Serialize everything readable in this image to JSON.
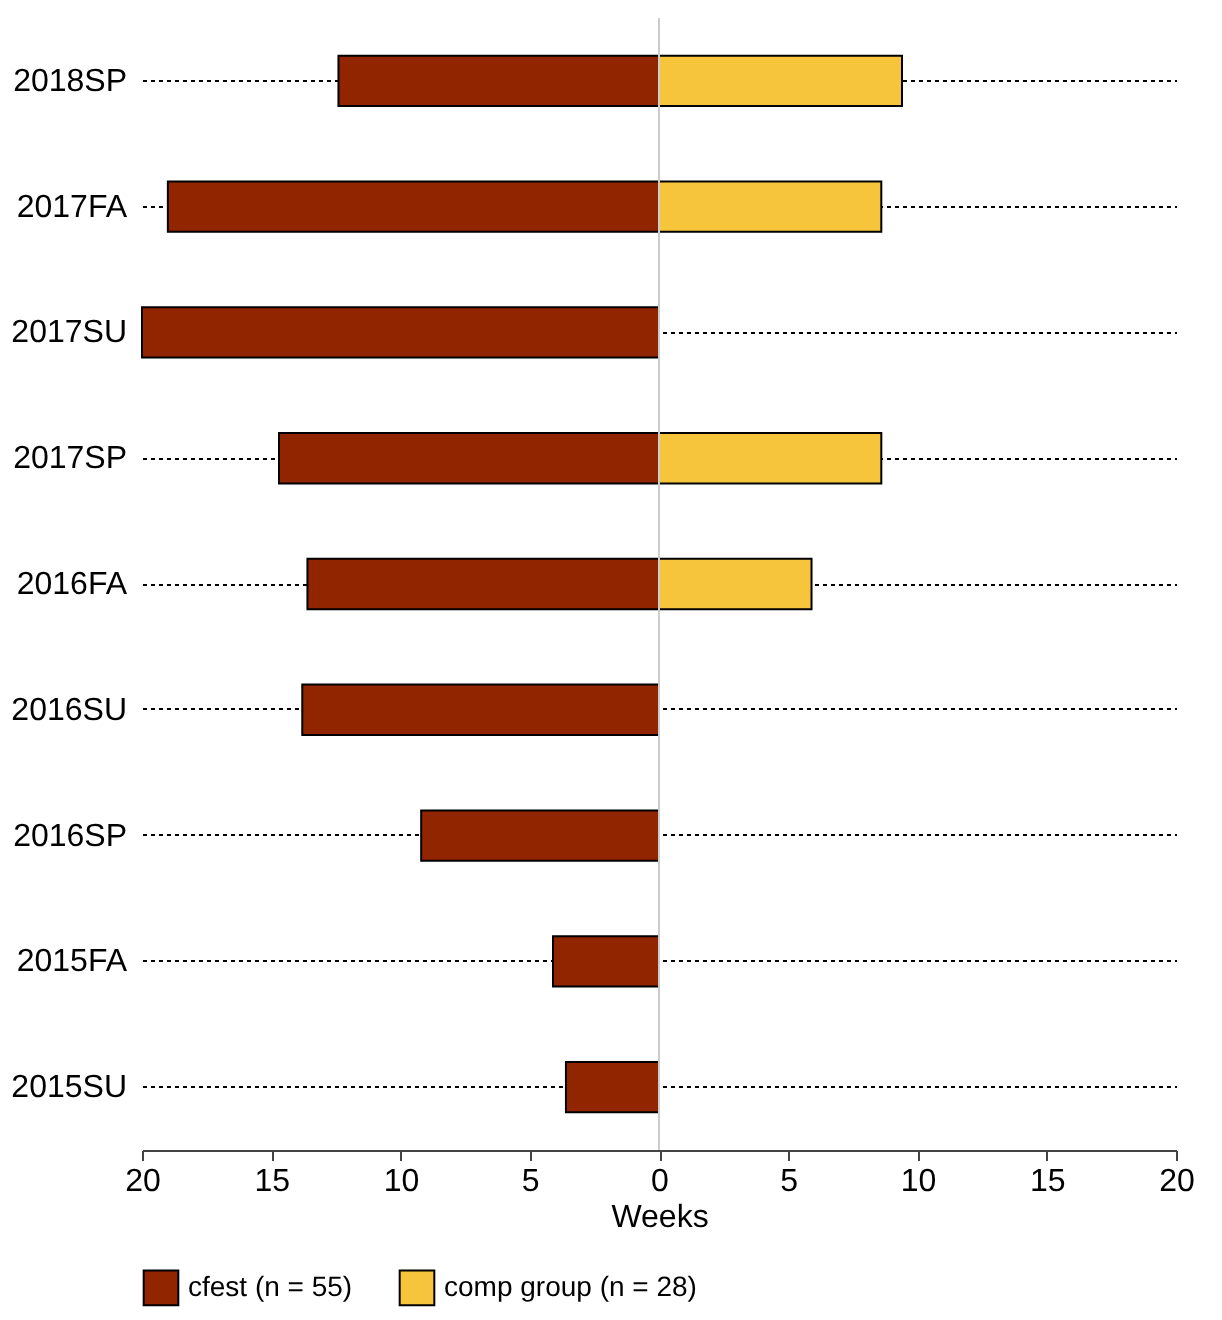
{
  "chart_data": {
    "type": "bar",
    "orientation": "horizontal",
    "xlabel": "Weeks",
    "categories": [
      "2018SP",
      "2017FA",
      "2017SU",
      "2017SP",
      "2016FA",
      "2016SU",
      "2016SP",
      "2015FA",
      "2015SU"
    ],
    "series": [
      {
        "name": "cfest (n = 55)",
        "color": "#912500",
        "values": [
          -12.4,
          -19.0,
          -20.0,
          -14.7,
          -13.6,
          -13.8,
          -9.2,
          -4.1,
          -3.6
        ]
      },
      {
        "name": "comp group (n = 28)",
        "color": "#f7c53c",
        "values": [
          9.4,
          8.6,
          null,
          8.6,
          5.9,
          null,
          null,
          null,
          null
        ]
      }
    ],
    "xlim": [
      -20,
      20
    ],
    "xticks": [
      {
        "value": -20,
        "label": "20"
      },
      {
        "value": -15,
        "label": "15"
      },
      {
        "value": -10,
        "label": "10"
      },
      {
        "value": -5,
        "label": "5"
      },
      0,
      5,
      10,
      15,
      20
    ],
    "ref_lines": [
      {
        "axis": "x",
        "value": 0,
        "color": "#cccccc"
      }
    ],
    "grid": "y",
    "legend": "bottom"
  }
}
